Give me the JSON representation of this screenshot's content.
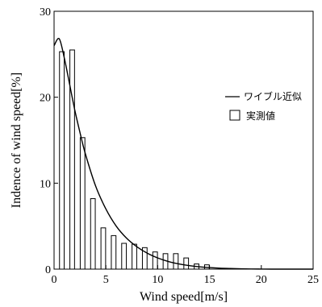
{
  "chart_data": {
    "type": "bar",
    "xlabel": "Wind speed[m/s]",
    "ylabel": "Indence of wind speed[%]",
    "xlim": [
      0,
      25
    ],
    "ylim": [
      0,
      30
    ],
    "x_ticks": [
      0,
      5,
      10,
      15,
      20,
      25
    ],
    "y_ticks": [
      0,
      10,
      20,
      30
    ],
    "grid": false,
    "legend_position": "right",
    "series": [
      {
        "name": "実測値",
        "type": "bar",
        "x": [
          0.75,
          1.75,
          2.75,
          3.75,
          4.75,
          5.75,
          6.75,
          7.75,
          8.75,
          9.75,
          10.75,
          11.75,
          12.75,
          13.75,
          14.75
        ],
        "values": [
          25.3,
          25.5,
          15.3,
          8.2,
          4.8,
          3.9,
          3.0,
          2.9,
          2.5,
          2.0,
          1.8,
          1.8,
          1.3,
          0.6,
          0.5
        ]
      },
      {
        "name": "ワイブル近似",
        "type": "line",
        "x": [
          0,
          0.5,
          1,
          1.5,
          2,
          2.5,
          3,
          4,
          5,
          6,
          7,
          8,
          9,
          10,
          11,
          12,
          13,
          14,
          15,
          16,
          17,
          18,
          19,
          20,
          21,
          22,
          23,
          24,
          25
        ],
        "values": [
          26.0,
          26.8,
          24.5,
          21.5,
          18.5,
          15.9,
          13.5,
          9.7,
          7.0,
          5.0,
          3.6,
          2.6,
          1.85,
          1.3,
          0.9,
          0.62,
          0.42,
          0.28,
          0.18,
          0.11,
          0.07,
          0.04,
          0.02,
          0.01,
          0.0,
          0.0,
          0.0,
          0.0,
          0.0
        ]
      }
    ]
  }
}
